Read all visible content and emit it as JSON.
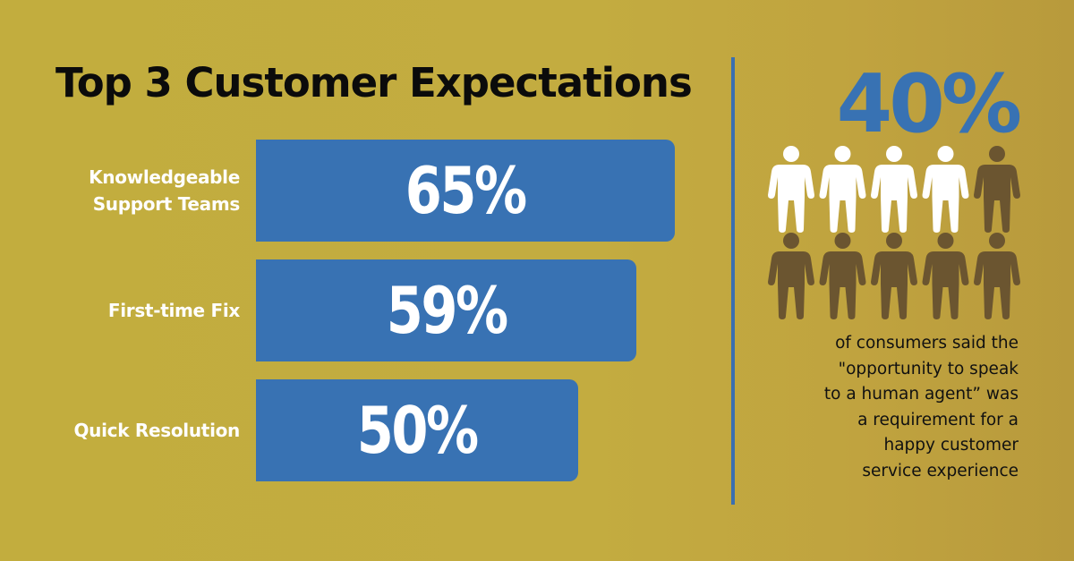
{
  "title": "Top 3 Customer Expectations",
  "chart_data": {
    "type": "bar",
    "orientation": "horizontal",
    "categories": [
      "Knowledgeable Support Teams",
      "First-time Fix",
      "Quick Resolution"
    ],
    "values": [
      65,
      59,
      50
    ],
    "value_labels": [
      "65%",
      "59%",
      "50%"
    ],
    "bar_color": "#3872b3"
  },
  "sidebar": {
    "stat": "40%",
    "caption_lines": [
      "of consumers said the",
      "\"opportunity to speak",
      "to a human agent” was",
      "a requirement for a",
      "happy customer",
      "service experience"
    ],
    "people": {
      "total": 10,
      "highlighted": 4,
      "highlight_color": "#ffffff",
      "base_color": "#6b5530"
    }
  },
  "colors": {
    "background": "#c2ad3e",
    "accent": "#3872b3",
    "divider": "#3b6fb0"
  }
}
